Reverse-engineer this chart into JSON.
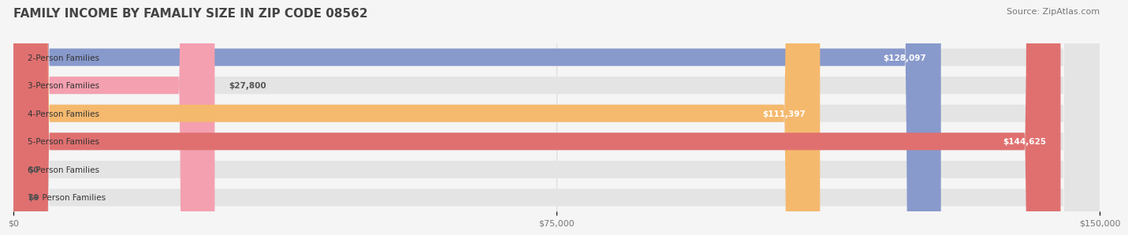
{
  "title": "FAMILY INCOME BY FAMALIY SIZE IN ZIP CODE 08562",
  "source": "Source: ZipAtlas.com",
  "categories": [
    "2-Person Families",
    "3-Person Families",
    "4-Person Families",
    "5-Person Families",
    "6-Person Families",
    "7+ Person Families"
  ],
  "values": [
    128097,
    27800,
    111397,
    144625,
    0,
    0
  ],
  "bar_colors": [
    "#8899cc",
    "#f4a0b0",
    "#f5b96e",
    "#e07070",
    "#aabbdd",
    "#c0aad0"
  ],
  "label_colors": [
    "#ffffff",
    "#555555",
    "#ffffff",
    "#ffffff",
    "#555555",
    "#555555"
  ],
  "max_value": 150000,
  "xticks": [
    0,
    75000,
    150000
  ],
  "xtick_labels": [
    "$0",
    "$75,000",
    "$150,000"
  ],
  "title_fontsize": 11,
  "source_fontsize": 8,
  "bar_height": 0.62,
  "background_color": "#f5f5f5",
  "bar_bg_color": "#e4e4e4",
  "value_labels": [
    "$128,097",
    "$27,800",
    "$111,397",
    "$144,625",
    "$0",
    "$0"
  ]
}
